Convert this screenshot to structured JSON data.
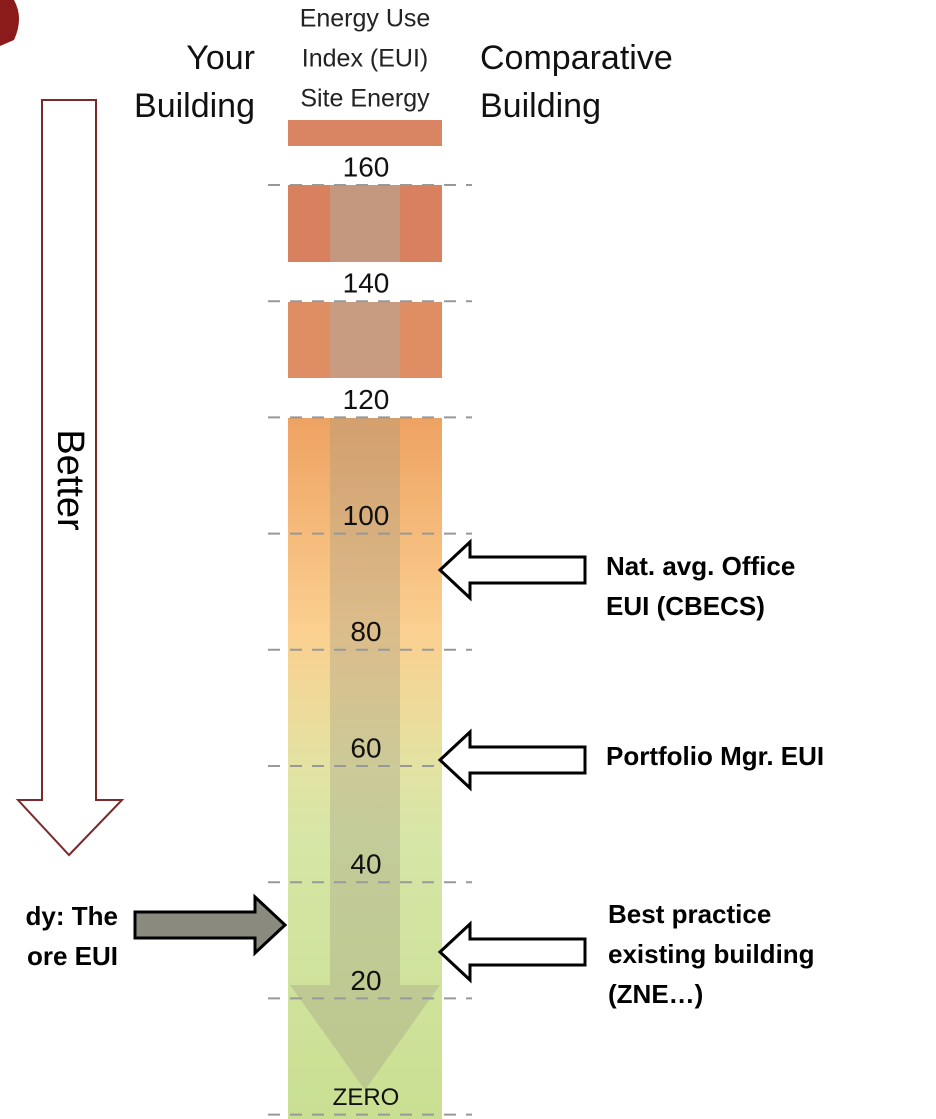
{
  "header": {
    "your_building": [
      "Your",
      "Building"
    ],
    "eui": [
      "Energy Use",
      "Index (EUI)",
      "Site Energy"
    ],
    "comparative": [
      "Comparative",
      "Building"
    ]
  },
  "direction": "Better",
  "scale": [
    160,
    140,
    120,
    100,
    80,
    60,
    40,
    20,
    "ZERO"
  ],
  "annotations": {
    "cbecs": [
      "Nat. avg. Office",
      "EUI (CBECS)"
    ],
    "portfolio": [
      "Portfolio Mgr. EUI"
    ],
    "best_practice": [
      "Best practice",
      "existing building",
      "(ZNE…)"
    ],
    "your_building": [
      "dy: The",
      "ore EUI"
    ]
  }
}
